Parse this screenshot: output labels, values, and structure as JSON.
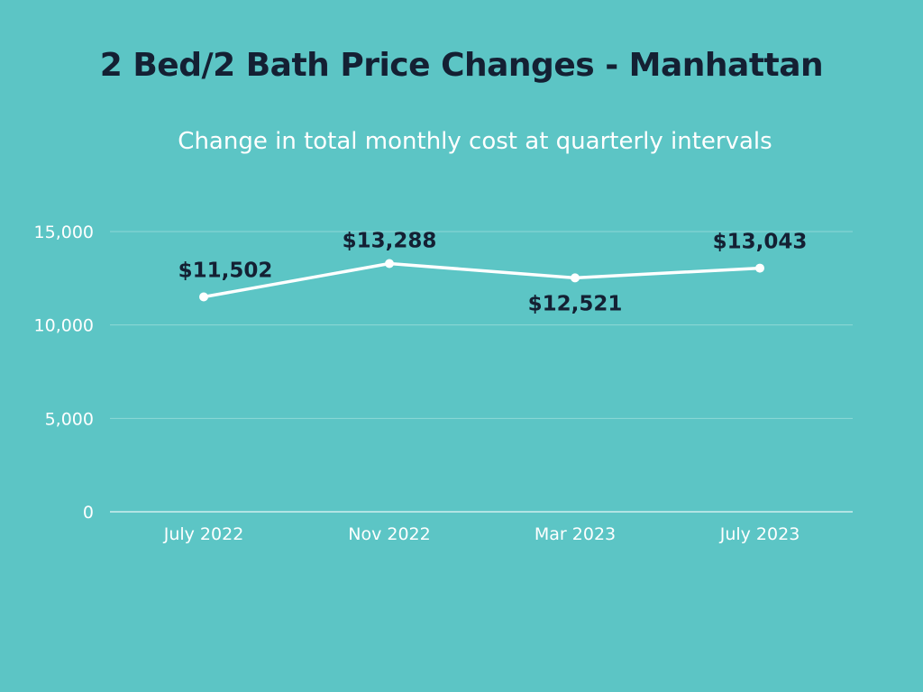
{
  "chart_data": {
    "type": "line",
    "title": "2 Bed/2 Bath Price Changes - Manhattan",
    "subtitle": "Change in total monthly cost at quarterly intervals",
    "categories": [
      "July 2022",
      "Nov 2022",
      "Mar 2023",
      "July 2023"
    ],
    "series": [
      {
        "name": "Total monthly cost",
        "values": [
          11502,
          13288,
          12521,
          13043
        ],
        "labels": [
          "$11,502",
          "$13,288",
          "$12,521",
          "$13,043"
        ]
      }
    ],
    "yticks": [
      0,
      5000,
      10000,
      15000
    ],
    "ytick_labels": [
      "0",
      "5,000",
      "10,000",
      "15,000"
    ],
    "ylim": [
      0,
      15000
    ],
    "grid": true,
    "xlabel": "",
    "ylabel": ""
  },
  "colors": {
    "background": "#5cc5c5",
    "title": "#142033",
    "line": "#ffffff",
    "gridline": "#8ed8d6",
    "axis_text": "#ffffff"
  }
}
